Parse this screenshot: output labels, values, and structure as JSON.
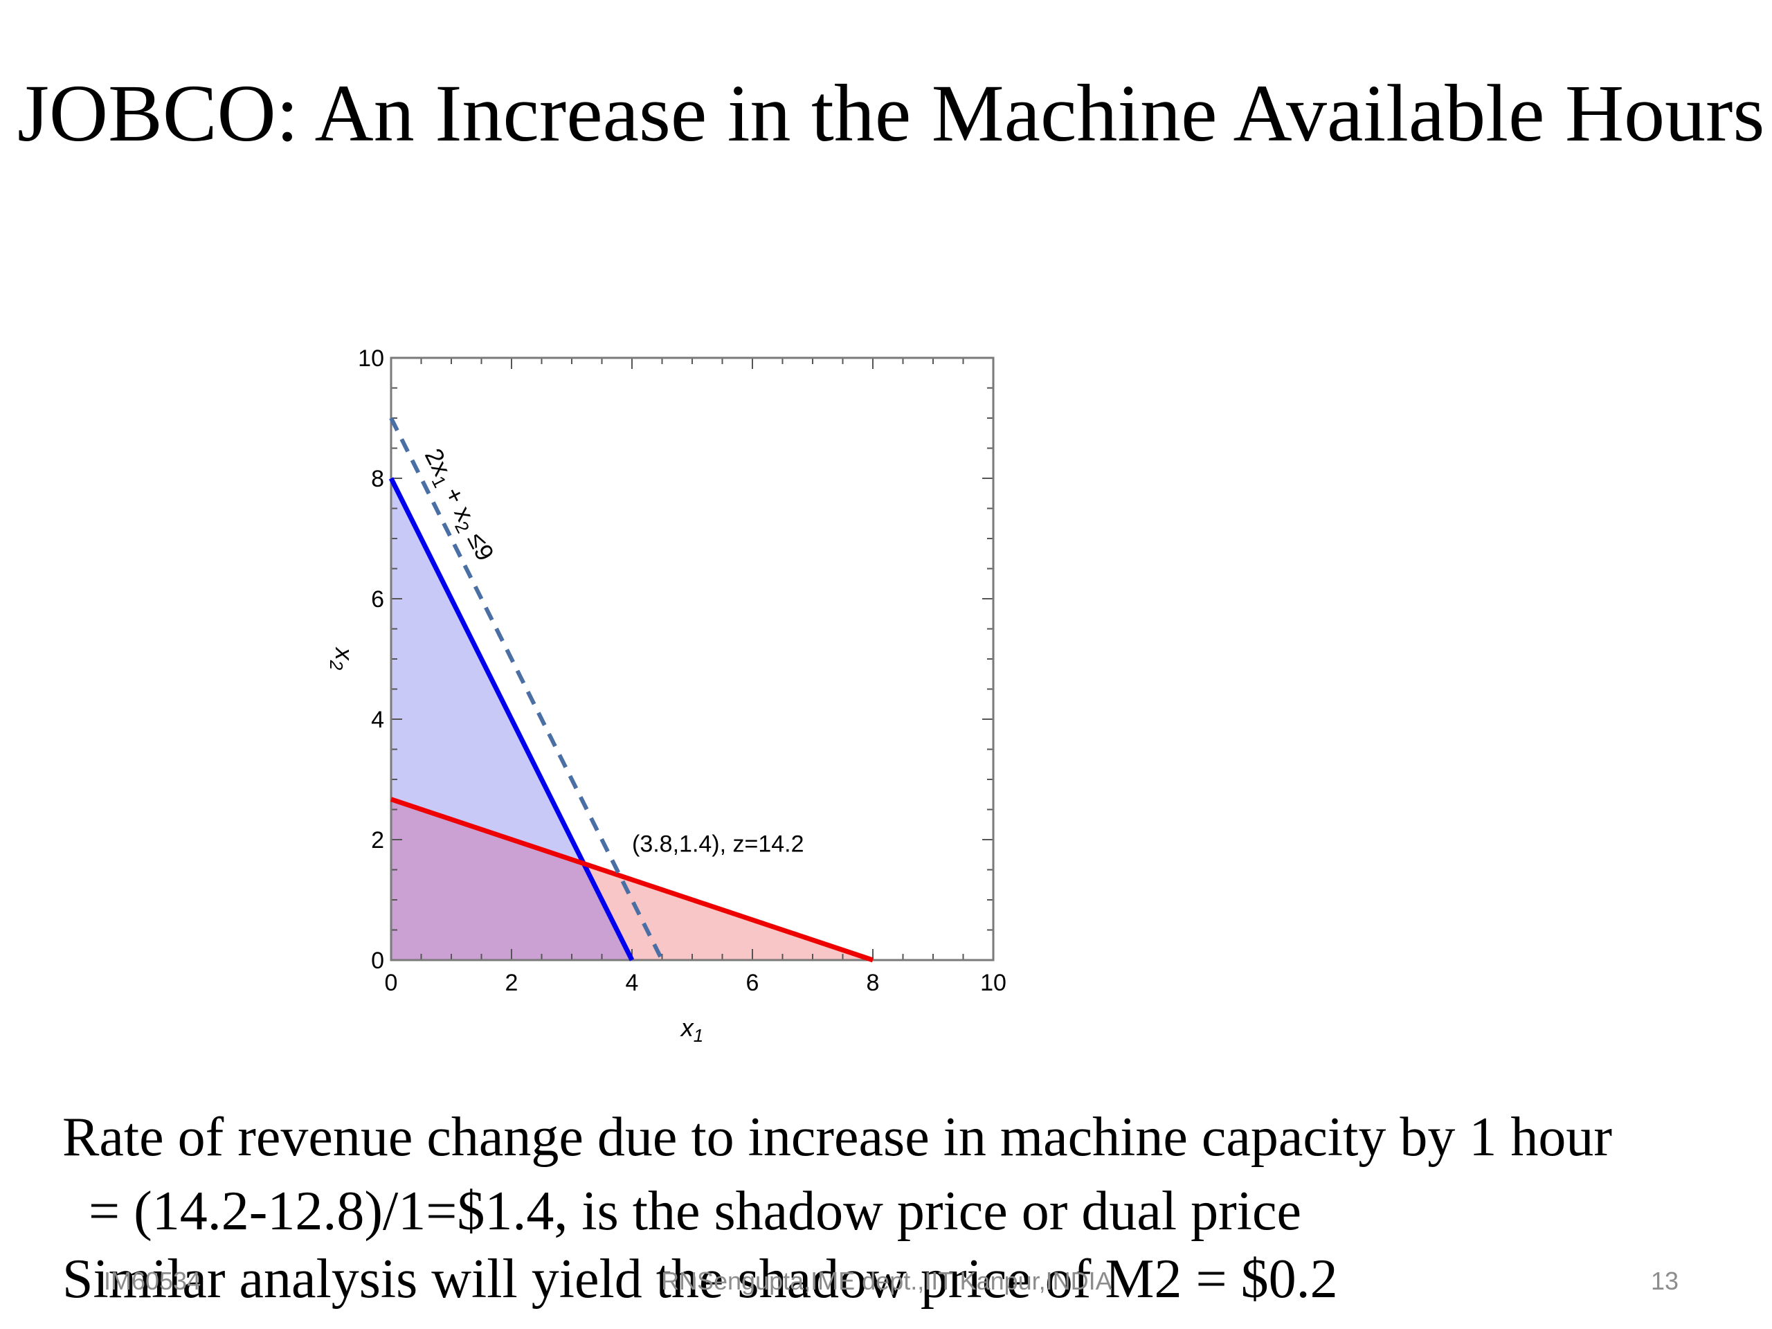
{
  "slide": {
    "title": "JOBCO: An Increase in the Machine Available Hours",
    "body_lines": [
      "Rate of revenue change due to increase in machine capacity by 1 hour",
      "= (14.2-12.8)/1=$1.4, is the shadow price or dual price",
      "Similar analysis will yield the shadow price of M2 = $0.2"
    ],
    "footer": {
      "left": "IM60534",
      "center": "RNSengupta,IME dept.,IIT Kanpur,INDIA",
      "page_number": "13"
    }
  },
  "chart_data": {
    "type": "line",
    "title": "",
    "xlabel": "x",
    "xlabel_sub": "1",
    "ylabel": "x",
    "ylabel_sub": "2",
    "xlim": [
      0,
      10
    ],
    "ylim": [
      0,
      10
    ],
    "x_ticks": [
      0,
      2,
      4,
      6,
      8,
      10
    ],
    "y_ticks": [
      0,
      2,
      4,
      6,
      8,
      10
    ],
    "grid": false,
    "series": [
      {
        "points": [
          [
            0,
            8
          ],
          [
            4,
            0
          ]
        ],
        "color": "#0000ee",
        "style": "solid",
        "fill": "#c9c9f8"
      },
      {
        "points": [
          [
            0,
            2.67
          ],
          [
            8,
            0
          ]
        ],
        "color": "#ee0000",
        "style": "solid",
        "fill": "#f8c6c6"
      },
      {
        "points": [
          [
            0,
            9
          ],
          [
            4.5,
            0
          ]
        ],
        "color": "#4a6fa5",
        "style": "dashed"
      }
    ],
    "overlap_fill": "#cba0d2",
    "annotations": [
      {
        "text": "2x",
        "sub1": "1",
        "mid": " + x",
        "sub2": "2",
        "tail": " ≤9",
        "x": 0.55,
        "y": 8.4,
        "rotation_deg": 63
      },
      {
        "text": "(3.8,1.4), z=14.2",
        "x": 4.0,
        "y": 1.8
      }
    ]
  }
}
